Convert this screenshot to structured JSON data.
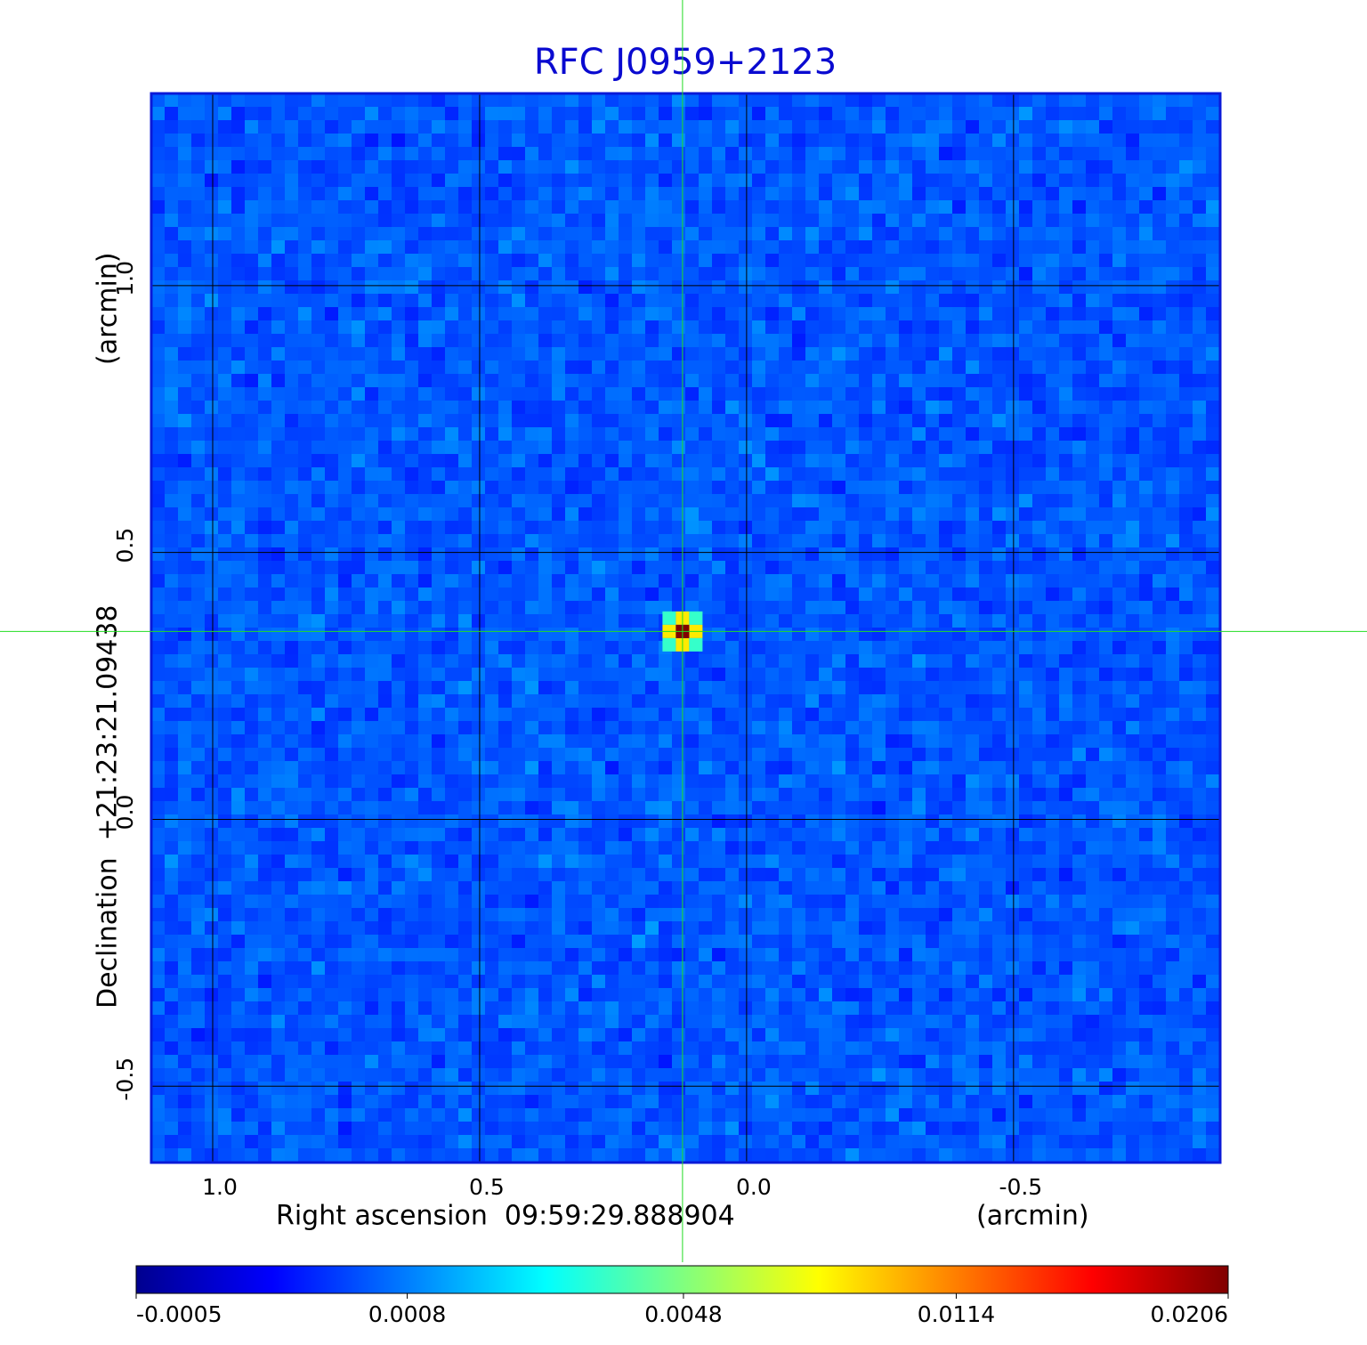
{
  "chart_data": {
    "type": "heatmap",
    "title": "RFC J0959+2123",
    "x_label": "Right ascension  09:59:29.888904",
    "x_unit": "(arcmin)",
    "y_label": "Declination  +21:23:21.09438",
    "y_unit": "(arcmin)",
    "xlim": [
      1.115,
      -0.887
    ],
    "xticks": [
      {
        "value": 1,
        "label": "1.0"
      },
      0.5,
      {
        "value": 0,
        "label": "0.0"
      },
      -0.5
    ],
    "ylim": [
      -0.643,
      1.36
    ],
    "yticks": [
      -0.5,
      {
        "value": 0,
        "label": "0.0"
      },
      0.5,
      {
        "value": 1,
        "label": "1.0"
      }
    ],
    "grid": true,
    "source": {
      "x": 0.12,
      "y": 0.352,
      "peak": 0.0206
    },
    "colorbar": {
      "lim": [
        -0.0005,
        0.0206
      ],
      "scale": "sqrt",
      "colormap": "jet",
      "ticks": [
        -0.0005,
        0.0008,
        0.0048,
        0.0114,
        0.0206
      ]
    }
  }
}
